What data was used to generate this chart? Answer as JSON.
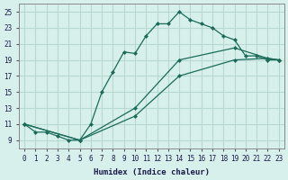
{
  "xlabel": "Humidex (Indice chaleur)",
  "bg_color": "#d8f0ec",
  "grid_color": "#b8d8d4",
  "line_color": "#1a6b5a",
  "xlim": [
    -0.5,
    23.5
  ],
  "ylim": [
    8,
    26
  ],
  "xticks": [
    0,
    1,
    2,
    3,
    4,
    5,
    6,
    7,
    8,
    9,
    10,
    11,
    12,
    13,
    14,
    15,
    16,
    17,
    18,
    19,
    20,
    21,
    22,
    23
  ],
  "yticks": [
    9,
    11,
    13,
    15,
    17,
    19,
    21,
    23,
    25
  ],
  "series": [
    {
      "x": [
        0,
        1,
        2,
        3,
        4,
        5,
        6,
        7,
        8,
        9,
        10,
        11,
        12,
        13,
        14,
        15,
        16,
        17,
        18,
        19,
        20,
        21,
        22,
        23
      ],
      "y": [
        11,
        10,
        10,
        9.5,
        9,
        9,
        11,
        15,
        17.5,
        20,
        19.8,
        22,
        23.5,
        23.5,
        25,
        24,
        23.5,
        23,
        22,
        21.5,
        19.5,
        19.5,
        19,
        19
      ]
    },
    {
      "x": [
        0,
        5,
        10,
        14,
        19,
        22,
        23
      ],
      "y": [
        11,
        9,
        13,
        19,
        20.5,
        19.2,
        19
      ]
    },
    {
      "x": [
        0,
        5,
        10,
        14,
        19,
        22,
        23
      ],
      "y": [
        11,
        9,
        12,
        17,
        19,
        19.2,
        19
      ]
    }
  ]
}
